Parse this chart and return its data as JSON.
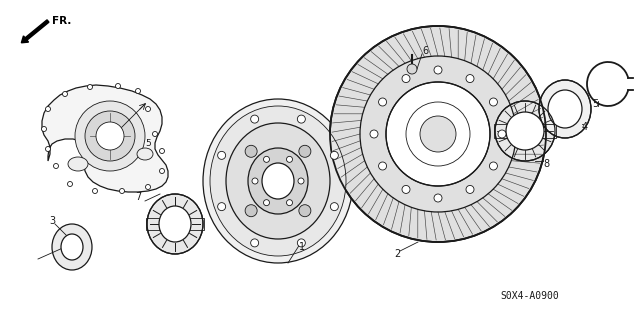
{
  "diagram_code": "S0X4-A0900",
  "fr_label": "FR.",
  "background_color": "#ffffff",
  "line_color": "#1a1a1a",
  "fig_width": 6.4,
  "fig_height": 3.19,
  "dpi": 100
}
